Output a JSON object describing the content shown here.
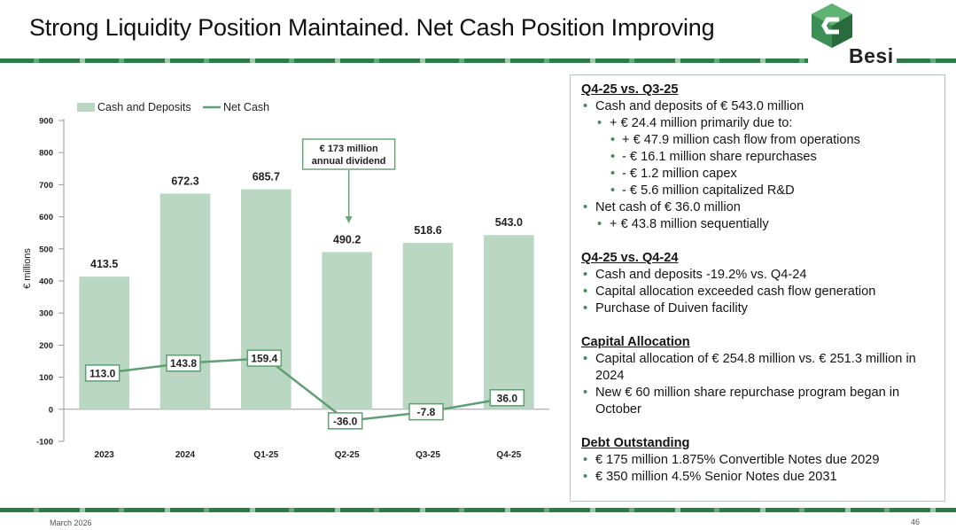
{
  "slide": {
    "title": "Strong Liquidity Position Maintained. Net Cash Position Improving",
    "logo_text": "Besi",
    "footer_date": "March 2026",
    "page_number": "46",
    "brand_color": "#2f7a45"
  },
  "panel": {
    "sections": [
      {
        "heading": "Q4-25 vs. Q3-25",
        "items": [
          {
            "level": 1,
            "text": "Cash and deposits of € 543.0 million"
          },
          {
            "level": 2,
            "text": "+ € 24.4 million primarily due to:"
          },
          {
            "level": 3,
            "text": "+ €  47.9 million cash flow from operations"
          },
          {
            "level": 3,
            "text": "-  €  16.1 million share repurchases"
          },
          {
            "level": 3,
            "text": "-  €  1.2 million capex"
          },
          {
            "level": 3,
            "text": "-  €  5.6 million capitalized R&D"
          },
          {
            "level": 1,
            "text": "Net cash of € 36.0 million"
          },
          {
            "level": 2,
            "text": "+ € 43.8 million sequentially"
          }
        ]
      },
      {
        "heading": "Q4-25 vs. Q4-24",
        "items": [
          {
            "level": 1,
            "text": "Cash and deposits -19.2% vs. Q4-24"
          },
          {
            "level": 1,
            "text": "Capital allocation exceeded cash flow generation"
          },
          {
            "level": 1,
            "text": "Purchase of Duiven facility"
          }
        ]
      },
      {
        "heading": "Capital Allocation",
        "items": [
          {
            "level": 1,
            "text": "Capital allocation of € 254.8 million vs. € 251.3 million in 2024"
          },
          {
            "level": 1,
            "text": "New € 60 million share repurchase program began in October"
          }
        ]
      },
      {
        "heading": "Debt Outstanding",
        "items": [
          {
            "level": 1,
            "text": "€ 175 million 1.875% Convertible Notes due 2029"
          },
          {
            "level": 1,
            "text": "€ 350 million 4.5% Senior Notes due 2031"
          }
        ]
      }
    ]
  },
  "chart_data": {
    "type": "bar",
    "categories": [
      "2023",
      "2024",
      "Q1-25",
      "Q2-25",
      "Q3-25",
      "Q4-25"
    ],
    "series": [
      {
        "name": "Cash and Deposits",
        "type": "bar",
        "values": [
          413.5,
          672.3,
          685.7,
          490.2,
          518.6,
          543.0
        ],
        "labels": [
          "413.5",
          "672.3",
          "685.7",
          "490.2",
          "518.6",
          "543.0"
        ],
        "color": "#b9d7c2"
      },
      {
        "name": "Net Cash",
        "type": "line",
        "values": [
          113.0,
          143.8,
          159.4,
          -36.0,
          -7.8,
          36.0
        ],
        "labels": [
          "113.0",
          "143.8",
          "159.4",
          "-36.0",
          "-7.8",
          "36.0"
        ],
        "color": "#5e9e72"
      }
    ],
    "ylabel": "€ millions",
    "ylim": [
      -100,
      900
    ],
    "yticks": [
      -100,
      0,
      100,
      200,
      300,
      400,
      500,
      600,
      700,
      800,
      900
    ],
    "ytick_labels": [
      "-100",
      "0",
      "100",
      "200",
      "300",
      "400",
      "500",
      "600",
      "700",
      "800",
      "900"
    ],
    "legend_position": "top-left",
    "annotation": {
      "lines": [
        "€ 173 million",
        "annual dividend"
      ],
      "category": "Q2-25"
    }
  }
}
